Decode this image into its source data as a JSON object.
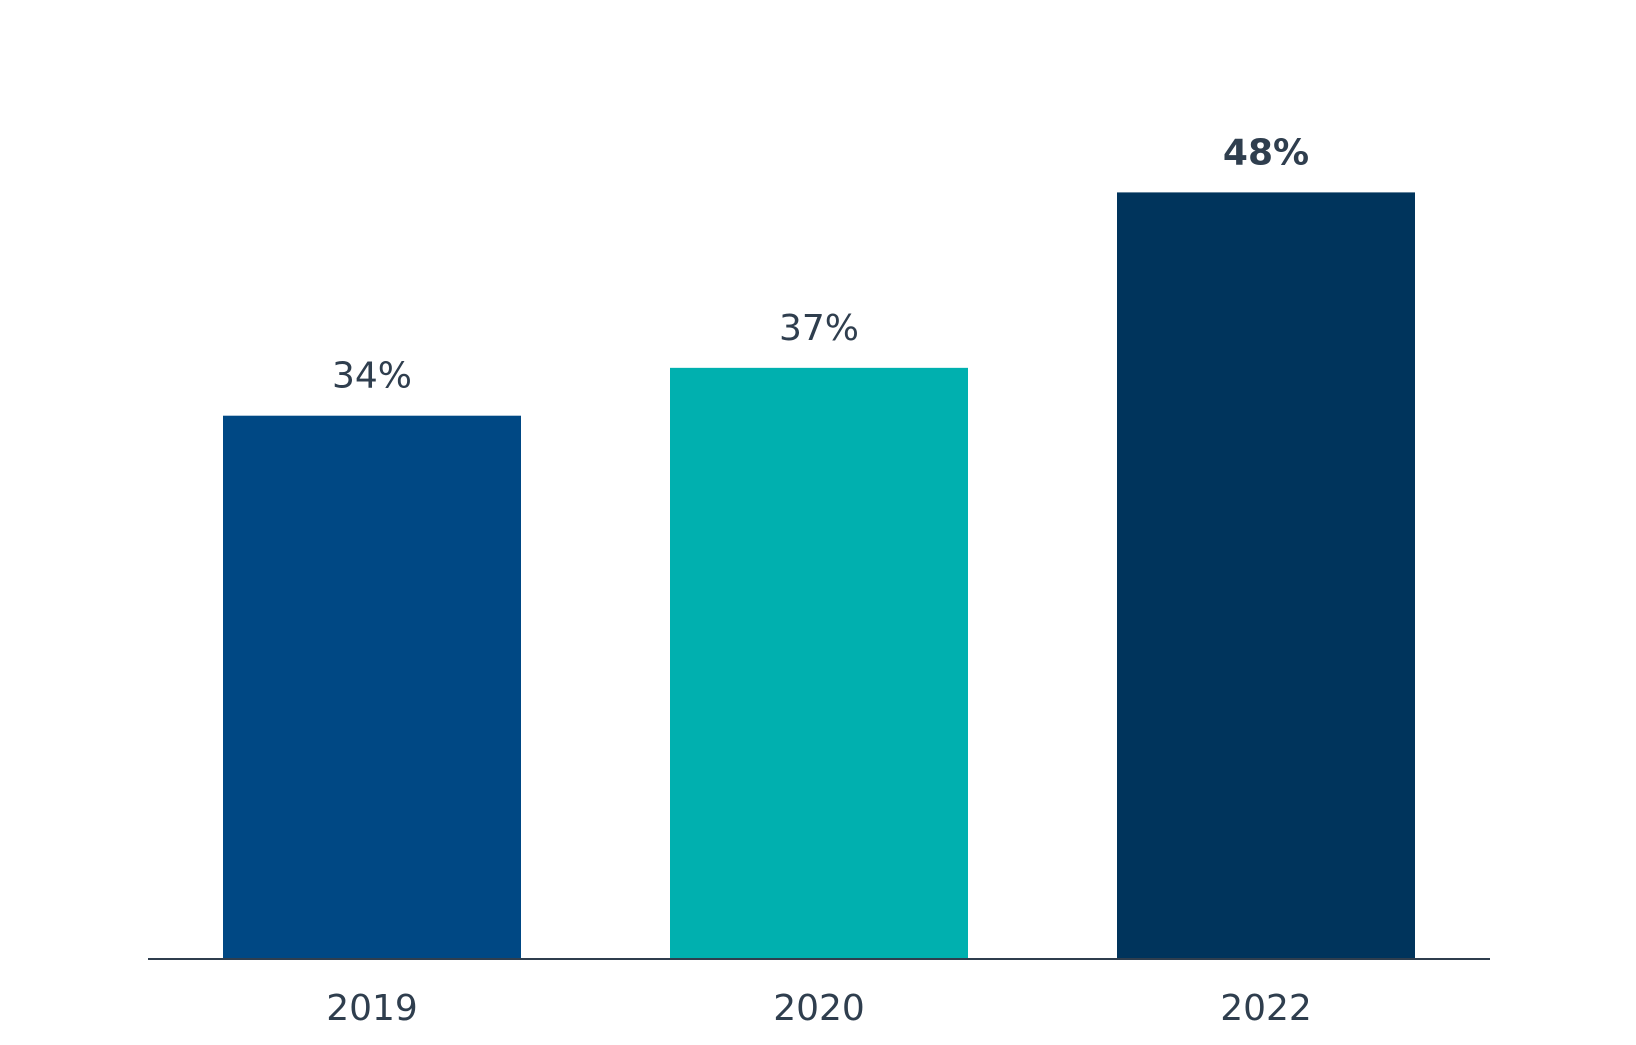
{
  "chart_data": {
    "type": "bar",
    "categories": [
      "2019",
      "2020",
      "2022"
    ],
    "values": [
      34,
      37,
      48
    ],
    "value_labels": [
      "34%",
      "37%",
      "48%"
    ],
    "bold_labels": [
      false,
      false,
      true
    ],
    "colors": [
      "#004884",
      "#00b0af",
      "#00345c"
    ],
    "axis_color": "#2f3e4e",
    "title": "",
    "xlabel": "",
    "ylabel": "",
    "ylim": [
      0,
      50
    ],
    "grid": false,
    "legend": "none"
  }
}
